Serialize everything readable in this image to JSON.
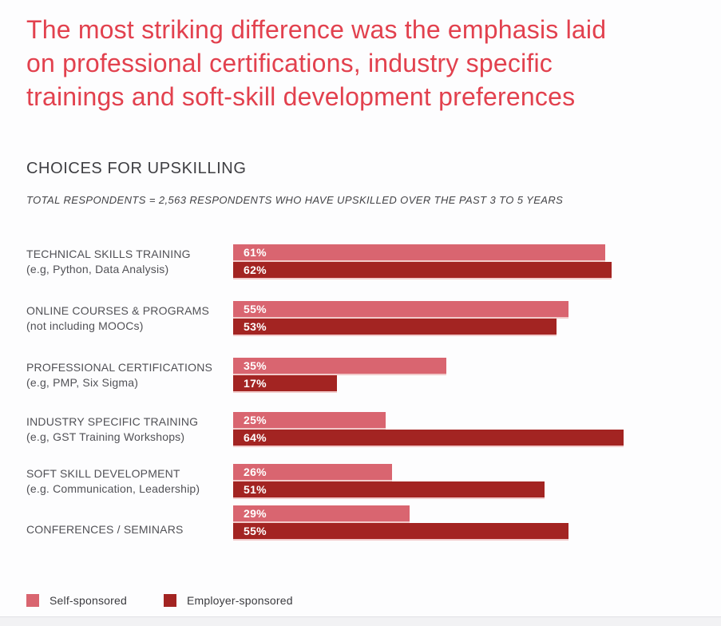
{
  "page": {
    "accent_color": "#e2414e",
    "headline_lines": [
      "The most striking difference was the emphasis laid",
      "on professional certifications, industry specific",
      "trainings and soft-skill development preferences"
    ]
  },
  "chart_data": {
    "type": "bar",
    "orientation": "horizontal",
    "title": "CHOICES FOR UPSKILLING",
    "subtitle": "TOTAL RESPONDENTS = 2,563 RESPONDENTS WHO HAVE UPSKILLED OVER THE PAST 3 TO 5 YEARS",
    "categories": [
      "TECHNICAL SKILLS TRAINING (e.g, Python, Data Analysis)",
      "ONLINE COURSES & PROGRAMS (not including MOOCs)",
      "PROFESSIONAL CERTIFICATIONS (e.g, PMP, Six Sigma)",
      "INDUSTRY SPECIFIC TRAINING (e.g, GST Training Workshops)",
      "SOFT SKILL DEVELOPMENT (e.g. Communication, Leadership)",
      "CONFERENCES / SEMINARS"
    ],
    "series": [
      {
        "name": "Self-sponsored",
        "values": [
          61,
          55,
          35,
          25,
          26,
          29
        ]
      },
      {
        "name": "Employer-sponsored",
        "values": [
          62,
          53,
          17,
          64,
          51,
          55
        ]
      }
    ],
    "value_suffix": "%",
    "xlim": [
      0,
      80
    ],
    "grid": false,
    "legend_position": "bottom-left",
    "colors": {
      "self_sponsored": "#d96570",
      "employer_sponsored": "#a32422"
    }
  },
  "rows": [
    {
      "label": "TECHNICAL SKILLS TRAINING",
      "sublabel": "(e.g, Python, Data Analysis)",
      "self_label": "61%",
      "employer_label": "62%"
    },
    {
      "label": "ONLINE COURSES & PROGRAMS",
      "sublabel": "(not including MOOCs)",
      "self_label": "55%",
      "employer_label": "53%"
    },
    {
      "label": "PROFESSIONAL CERTIFICATIONS",
      "sublabel": "(e.g, PMP, Six Sigma)",
      "self_label": "35%",
      "employer_label": "17%"
    },
    {
      "label": "INDUSTRY SPECIFIC TRAINING",
      "sublabel": "(e.g, GST Training Workshops)",
      "self_label": "25%",
      "employer_label": "64%"
    },
    {
      "label": "SOFT SKILL DEVELOPMENT",
      "sublabel": "(e.g. Communication, Leadership)",
      "self_label": "26%",
      "employer_label": "51%"
    },
    {
      "label": "CONFERENCES / SEMINARS",
      "sublabel": "",
      "self_label": "29%",
      "employer_label": "55%"
    }
  ]
}
